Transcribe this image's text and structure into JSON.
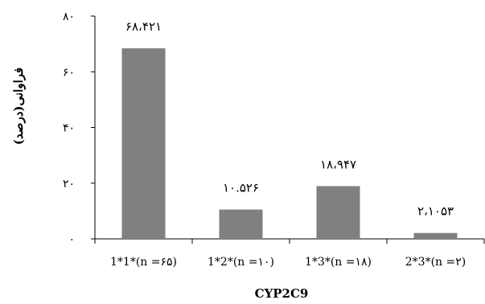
{
  "chart_data": {
    "type": "bar",
    "categories": [
      "1*1*(n =۶۵)",
      "1*2*(n =۱۰)",
      "1*3*(n =۱۸)",
      "2*3*(n =۲)"
    ],
    "values": [
      68.421,
      10.526,
      18.947,
      2.1053
    ],
    "data_labels": [
      "۶۸،۴۲۱",
      "۱۰.۵۲۶",
      "۱۸،۹۴۷",
      "۲،۱۰۵۳"
    ],
    "xlabel": "CYP2C9",
    "ylabel": "فراوانی(درصد)",
    "ylim": [
      0,
      80
    ],
    "yticks": [
      0,
      20,
      40,
      60,
      80
    ],
    "ytick_labels": [
      "۰",
      "۲۰",
      "۴۰",
      "۶۰",
      "۸۰"
    ],
    "bar_color": "#808080",
    "grid": false,
    "legend": "none"
  }
}
